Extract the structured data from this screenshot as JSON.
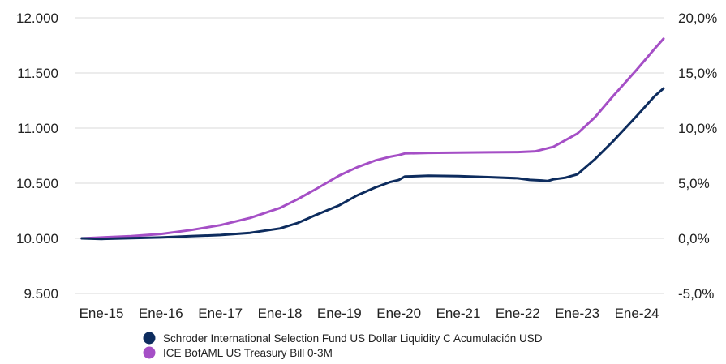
{
  "chart_data": {
    "type": "line",
    "title": "",
    "xlabel": "",
    "ylabel": "",
    "ylim": [
      9500,
      12000
    ],
    "y2lim": [
      -5.0,
      20.0
    ],
    "y_ticks": [
      {
        "value": 12000,
        "label": "12.000"
      },
      {
        "value": 11500,
        "label": "11.500"
      },
      {
        "value": 11000,
        "label": "11.000"
      },
      {
        "value": 10500,
        "label": "10.500"
      },
      {
        "value": 10000,
        "label": "10.000"
      },
      {
        "value": 9500,
        "label": "9.500"
      }
    ],
    "y2_ticks": [
      {
        "value": 20.0,
        "label": "20,0%"
      },
      {
        "value": 15.0,
        "label": "15,0%"
      },
      {
        "value": 10.0,
        "label": "10,0%"
      },
      {
        "value": 5.0,
        "label": "5,0%"
      },
      {
        "value": 0.0,
        "label": "0,0%"
      },
      {
        "value": -5.0,
        "label": "-5,0%"
      }
    ],
    "x_ticks": [
      {
        "value": 2015.0,
        "label": "Ene-15"
      },
      {
        "value": 2016.0,
        "label": "Ene-16"
      },
      {
        "value": 2017.0,
        "label": "Ene-17"
      },
      {
        "value": 2018.0,
        "label": "Ene-18"
      },
      {
        "value": 2019.0,
        "label": "Ene-19"
      },
      {
        "value": 2020.0,
        "label": "Ene-20"
      },
      {
        "value": 2021.0,
        "label": "Ene-21"
      },
      {
        "value": 2022.0,
        "label": "Ene-22"
      },
      {
        "value": 2023.0,
        "label": "Ene-23"
      },
      {
        "value": 2024.0,
        "label": "Ene-24"
      }
    ],
    "xlim": [
      2014.55,
      2024.45
    ],
    "grid": "horizontal",
    "legend": "bottom",
    "series": [
      {
        "name": "Schroder International Selection Fund US Dollar Liquidity C Acumulación USD",
        "color": "#0d2c5e",
        "x": [
          2014.67,
          2015.0,
          2015.5,
          2016.0,
          2016.5,
          2017.0,
          2017.5,
          2018.0,
          2018.3,
          2018.6,
          2019.0,
          2019.3,
          2019.6,
          2019.85,
          2020.0,
          2020.1,
          2020.5,
          2021.0,
          2021.5,
          2022.0,
          2022.2,
          2022.4,
          2022.5,
          2022.6,
          2022.8,
          2023.0,
          2023.3,
          2023.6,
          2024.0,
          2024.3,
          2024.45
        ],
        "values": [
          10000,
          9995,
          10002,
          10008,
          10020,
          10030,
          10050,
          10090,
          10140,
          10210,
          10300,
          10390,
          10460,
          10510,
          10530,
          10560,
          10568,
          10565,
          10555,
          10545,
          10530,
          10525,
          10520,
          10535,
          10550,
          10580,
          10720,
          10880,
          11110,
          11290,
          11360
        ]
      },
      {
        "name": "ICE BofAML US Treasury Bill 0-3M",
        "color": "#a54fc6",
        "x": [
          2014.67,
          2015.0,
          2015.5,
          2016.0,
          2016.5,
          2017.0,
          2017.5,
          2018.0,
          2018.3,
          2018.6,
          2019.0,
          2019.3,
          2019.6,
          2019.85,
          2020.0,
          2020.1,
          2020.5,
          2021.0,
          2021.5,
          2022.0,
          2022.3,
          2022.6,
          2023.0,
          2023.3,
          2023.6,
          2024.0,
          2024.3,
          2024.45
        ],
        "values": [
          10000,
          10008,
          10020,
          10040,
          10075,
          10120,
          10185,
          10275,
          10355,
          10445,
          10570,
          10645,
          10705,
          10740,
          10755,
          10770,
          10775,
          10778,
          10780,
          10782,
          10790,
          10830,
          10950,
          11100,
          11290,
          11530,
          11720,
          11810
        ]
      }
    ]
  }
}
